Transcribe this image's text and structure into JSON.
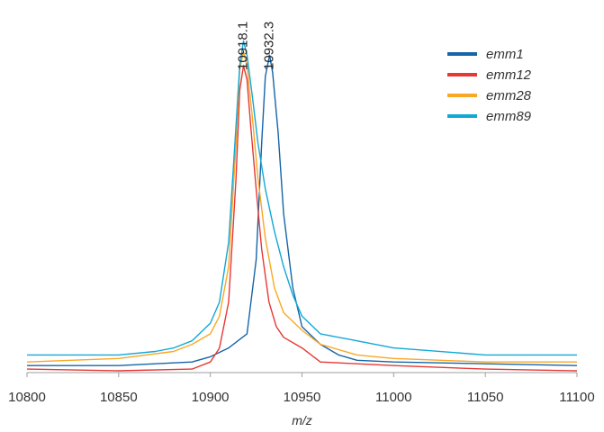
{
  "chart_data": {
    "type": "line",
    "title": "",
    "xlabel": "m/z",
    "ylabel": "",
    "xlim": [
      10800,
      11100
    ],
    "ylim": [
      0,
      100
    ],
    "xticks": [
      "10800",
      "10850",
      "10900",
      "10950",
      "11000",
      "11050",
      "11100"
    ],
    "xtick_values": [
      10800,
      10850,
      10900,
      10950,
      11000,
      11050,
      11100
    ],
    "grid": false,
    "legend_position": "top-right",
    "annotations": [
      {
        "text": "10918.1",
        "x": 10918.1
      },
      {
        "text": "10932.3",
        "x": 10932.3
      }
    ],
    "series": [
      {
        "name": "emm1",
        "color": "#1565a8",
        "x": [
          10800,
          10850,
          10890,
          10900,
          10910,
          10920,
          10925,
          10928,
          10930,
          10932.3,
          10934,
          10937,
          10940,
          10945,
          10950,
          10960,
          10970,
          10980,
          11000,
          11050,
          11100
        ],
        "y": [
          2,
          2,
          3,
          4.5,
          7,
          11,
          32,
          65,
          84,
          90,
          85,
          68,
          45,
          24,
          13,
          8,
          5,
          3.5,
          3,
          2.5,
          2
        ]
      },
      {
        "name": "emm12",
        "color": "#e53935",
        "x": [
          10800,
          10850,
          10890,
          10900,
          10905,
          10910,
          10914,
          10916,
          10918.1,
          10920,
          10922,
          10925,
          10928,
          10932,
          10936,
          10940,
          10950,
          10960,
          11000,
          11050,
          11100
        ],
        "y": [
          1,
          0.5,
          1,
          3,
          7,
          20,
          55,
          80,
          87,
          83,
          70,
          52,
          35,
          20,
          13,
          10,
          7,
          3,
          2,
          1,
          0.5
        ]
      },
      {
        "name": "emm28",
        "color": "#f9a825",
        "x": [
          10800,
          10850,
          10880,
          10890,
          10900,
          10905,
          10910,
          10914,
          10916,
          10918.1,
          10920,
          10923,
          10926,
          10930,
          10935,
          10940,
          10950,
          10960,
          10980,
          11000,
          11050,
          11100
        ],
        "y": [
          3,
          4,
          6,
          8,
          11,
          16,
          30,
          65,
          86,
          91,
          87,
          72,
          55,
          38,
          24,
          17,
          12,
          8,
          5,
          4,
          3,
          3
        ]
      },
      {
        "name": "emm89",
        "color": "#12a8d6",
        "x": [
          10800,
          10850,
          10870,
          10880,
          10890,
          10900,
          10905,
          10910,
          10914,
          10916,
          10918.1,
          10920,
          10923,
          10926,
          10930,
          10935,
          10940,
          10945,
          10950,
          10960,
          10980,
          11000,
          11050,
          11100
        ],
        "y": [
          5,
          5,
          6,
          7,
          9,
          14,
          20,
          37,
          70,
          87,
          94,
          90,
          78,
          65,
          52,
          40,
          30,
          22,
          16,
          11,
          9,
          7,
          5,
          5
        ]
      }
    ]
  }
}
